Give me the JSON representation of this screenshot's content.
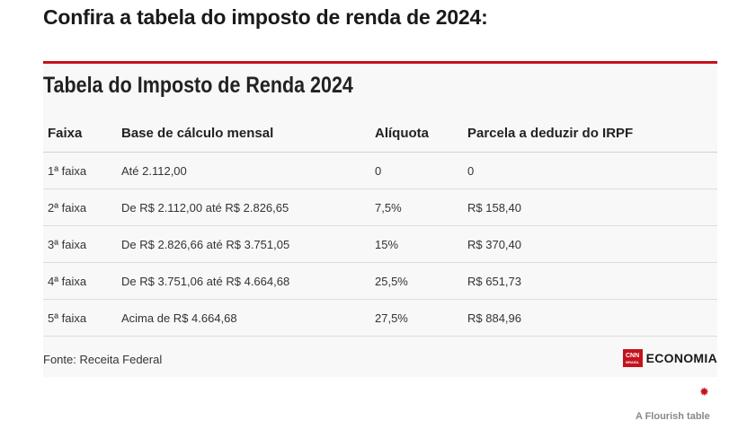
{
  "page": {
    "headline": "Confira a tabela do imposto de renda de 2024:"
  },
  "table": {
    "title": "Tabela do Imposto de Renda 2024",
    "columns": [
      "Faixa",
      "Base de cálculo mensal",
      "Alíquota",
      "Parcela a deduzir do IRPF"
    ],
    "rows": [
      [
        "1ª faixa",
        "Até 2.112,00",
        "0",
        "0"
      ],
      [
        "2ª faixa",
        "De R$ 2.112,00 até R$ 2.826,65",
        "7,5%",
        "R$ 158,40"
      ],
      [
        "3ª faixa",
        "De R$ 2.826,66 até R$ 3.751,05",
        "15%",
        "R$ 370,40"
      ],
      [
        "4ª faixa",
        "De R$ 3.751,06 até R$ 4.664,68",
        "25,5%",
        "R$ 651,73"
      ],
      [
        "5ª faixa",
        "Acima de R$ 4.664,68",
        "27,5%",
        "R$ 884,96"
      ]
    ],
    "source": "Fonte: Receita Federal"
  },
  "logo": {
    "box_line1": "CNN",
    "box_line2": "BRASIL",
    "text": "ECONOMIA"
  },
  "footer": {
    "credit": "A Flourish table",
    "icon": "flourish-asterisk-icon"
  },
  "colors": {
    "accent": "#c4121b",
    "card_bg": "#f8f8f8"
  }
}
